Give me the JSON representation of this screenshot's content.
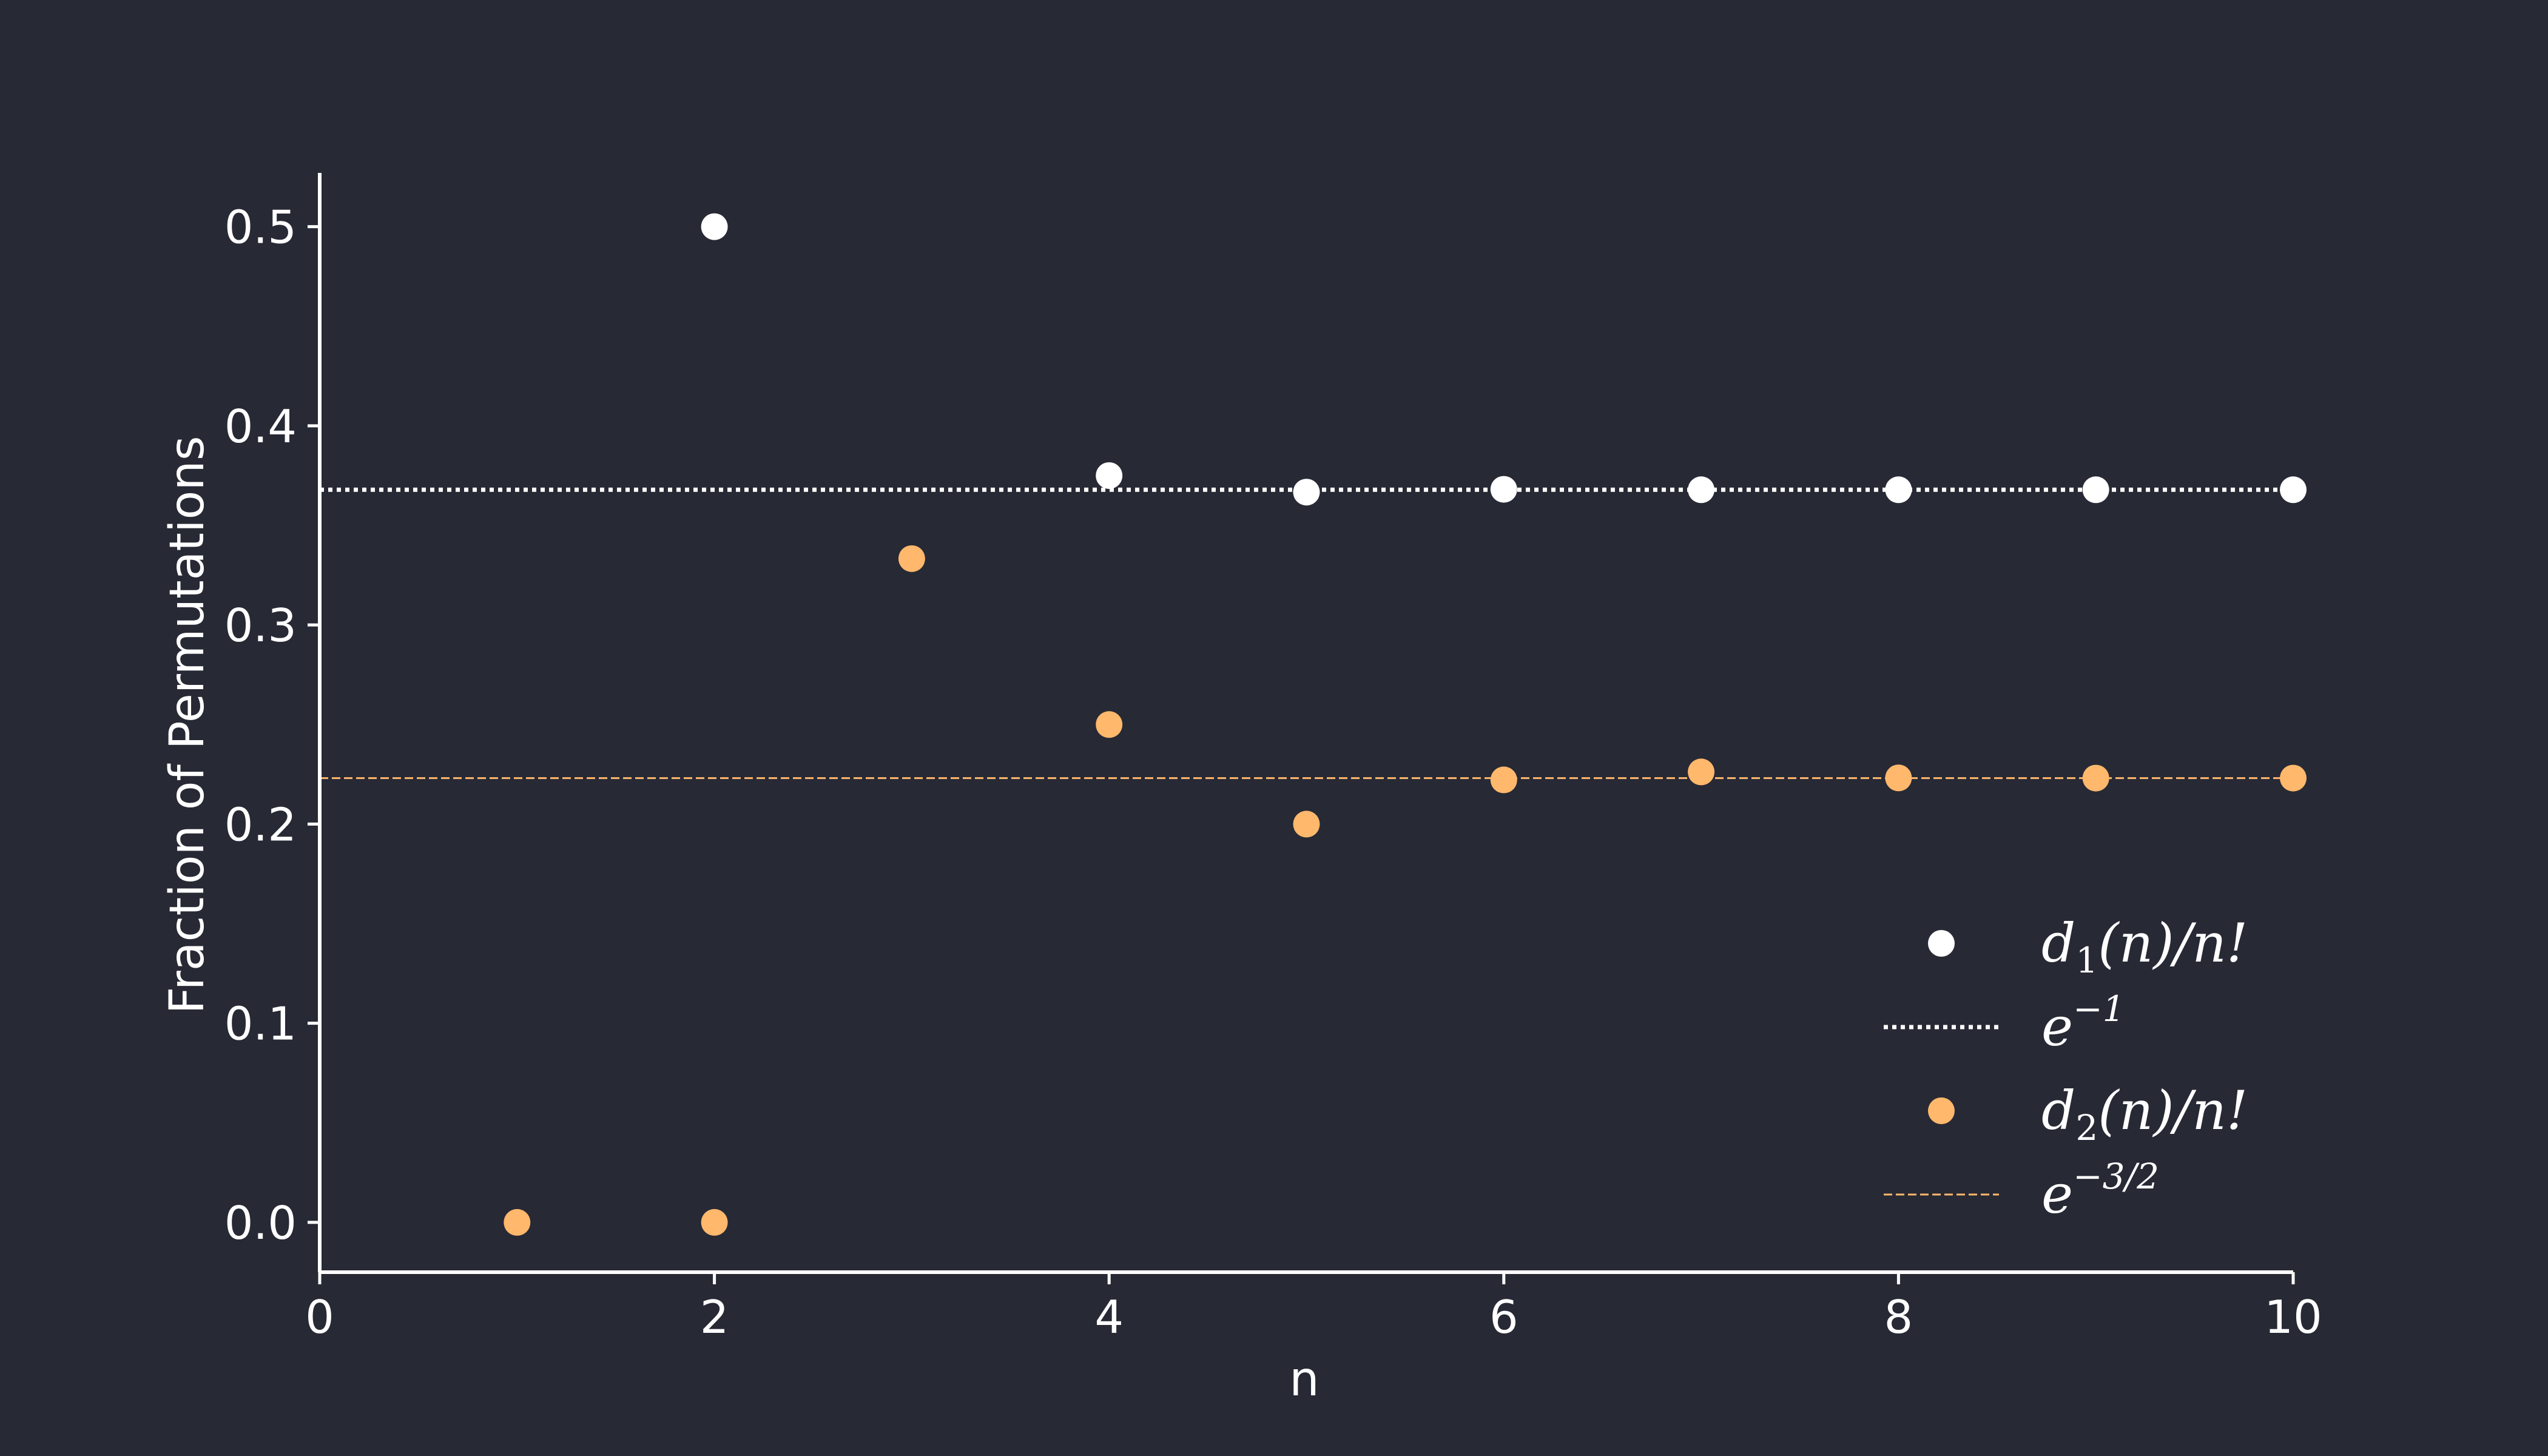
{
  "colors": {
    "background": "#272935",
    "series1": "#ffffff",
    "series2": "#ffb86c",
    "axis": "#ffffff"
  },
  "chart_data": {
    "type": "scatter",
    "xlabel": "n",
    "ylabel": "Fraction of Permutations",
    "xlim": [
      0,
      10
    ],
    "ylim": [
      -0.025,
      0.527
    ],
    "xticks": [
      "0",
      "2",
      "4",
      "6",
      "8",
      "10"
    ],
    "yticks": [
      "0.0",
      "0.1",
      "0.2",
      "0.3",
      "0.4",
      "0.5"
    ],
    "grid": false,
    "legend_position": "lower-right",
    "series": [
      {
        "kind": "scatter",
        "legend": {
          "main": "d",
          "sub": "1",
          "rest": "(n)/n!"
        },
        "color": "#ffffff",
        "x": [
          2,
          4,
          5,
          6,
          7,
          8,
          9,
          10
        ],
        "y": [
          0.5,
          0.375,
          0.3667,
          0.3681,
          0.3679,
          0.3679,
          0.3679,
          0.3679
        ]
      },
      {
        "kind": "hline",
        "style": "dotted",
        "legend": {
          "main": "e",
          "sup": "−1"
        },
        "color": "#ffffff",
        "y": 0.3679
      },
      {
        "kind": "scatter",
        "legend": {
          "main": "d",
          "sub": "2",
          "rest": "(n)/n!"
        },
        "color": "#ffb86c",
        "x": [
          1,
          2,
          3,
          4,
          5,
          6,
          7,
          8,
          9,
          10
        ],
        "y": [
          0.0,
          0.0,
          0.3333,
          0.25,
          0.2,
          0.2222,
          0.2262,
          0.2232,
          0.2231,
          0.2231
        ]
      },
      {
        "kind": "hline",
        "style": "dashed",
        "legend": {
          "main": "e",
          "sup": "−3/2"
        },
        "color": "#ffb86c",
        "y": 0.2231
      }
    ]
  }
}
